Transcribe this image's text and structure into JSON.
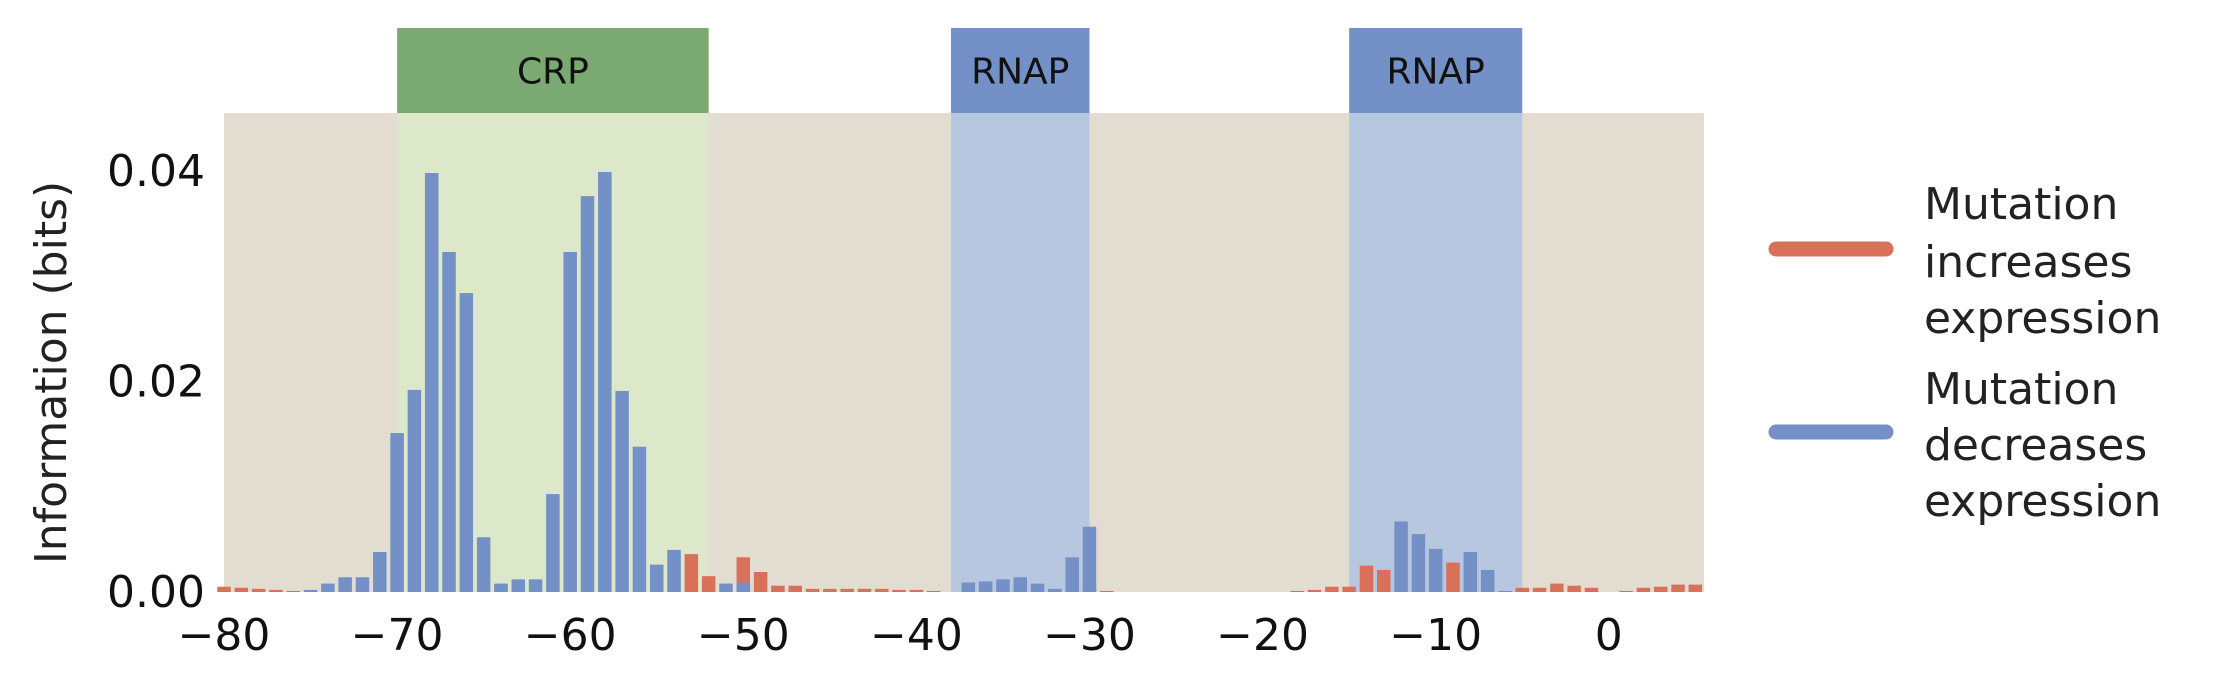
{
  "chart_data": {
    "type": "bar",
    "title": "",
    "xlabel": "",
    "ylabel": "Information (bits)",
    "xlim": [
      -80,
      5.5
    ],
    "ylim": [
      0,
      0.0455
    ],
    "xticks": [
      -80,
      -70,
      -60,
      -50,
      -40,
      -30,
      -20,
      -10,
      0
    ],
    "xtick_labels": [
      "−80",
      "−70",
      "−60",
      "−50",
      "−40",
      "−30",
      "−20",
      "−10",
      "0"
    ],
    "yticks": [
      0,
      0.02,
      0.04
    ],
    "ytick_labels": [
      "0.00",
      "0.02",
      "0.04"
    ],
    "grid": false,
    "background": "#e3ddd1",
    "legend_position": "right",
    "colors": {
      "increase": "#d9705a",
      "decrease": "#7391c6",
      "crp": "#7aaa72",
      "rnap": "#7391c6"
    },
    "regions": [
      {
        "label": "CRP",
        "start": -70,
        "end": -52,
        "color": "#7aaa72",
        "fill": "#dde8cb"
      },
      {
        "label": "RNAP",
        "start": -38,
        "end": -30,
        "color": "#7391c6",
        "fill": "#b8c7e0"
      },
      {
        "label": "RNAP",
        "start": -15,
        "end": -5,
        "color": "#7391c6",
        "fill": "#b8c7e0"
      }
    ],
    "series": [
      {
        "name": "Mutation increases expression",
        "color": "#d9705a",
        "legend_lines": [
          "Mutation",
          "increases",
          "expression"
        ],
        "x": [
          -80,
          -79,
          -78,
          -77,
          -76,
          -64,
          -63,
          -53,
          -52,
          -50,
          -49,
          -48,
          -47,
          -46,
          -45,
          -44,
          -43,
          -42,
          -41,
          -40,
          -39,
          -30,
          -29,
          -18,
          -17,
          -16,
          -15,
          -14,
          -13,
          -9,
          -5,
          -4,
          -3,
          -2,
          -1,
          1,
          2,
          3,
          4,
          5
        ],
        "values": [
          0.0005,
          0.0004,
          0.0003,
          0.0002,
          0.0001,
          0.0007,
          0.0008,
          0.0036,
          0.0015,
          0.0033,
          0.0019,
          0.0006,
          0.0006,
          0.0003,
          0.0003,
          0.0003,
          0.0003,
          0.0003,
          0.0002,
          0.0002,
          0.0001,
          0.0003,
          0.0001,
          0.0001,
          0.0002,
          0.0005,
          0.0005,
          0.0025,
          0.0021,
          0.0028,
          0.0004,
          0.0004,
          0.0008,
          0.0006,
          0.0004,
          0.0001,
          0.0004,
          0.0005,
          0.0007,
          0.0007
        ]
      },
      {
        "name": "Mutation decreases expression",
        "color": "#7391c6",
        "legend_lines": [
          "Mutation",
          "decreases",
          "expression"
        ],
        "x": [
          -75,
          -74,
          -73,
          -72,
          -71,
          -70,
          -69,
          -68,
          -67,
          -66,
          -65,
          -64,
          -63,
          -62,
          -61,
          -60,
          -59,
          -58,
          -57,
          -56,
          -55,
          -54,
          -51,
          -50,
          -37,
          -36,
          -35,
          -34,
          -33,
          -32,
          -31,
          -30,
          -12,
          -11,
          -10,
          -8,
          -7,
          -6
        ],
        "values": [
          0.0002,
          0.0008,
          0.0014,
          0.0014,
          0.0038,
          0.0151,
          0.0192,
          0.0398,
          0.0323,
          0.0284,
          0.0052,
          0.0008,
          0.0012,
          0.0012,
          0.0093,
          0.0323,
          0.0376,
          0.0399,
          0.0191,
          0.0138,
          0.0026,
          0.004,
          0.0008,
          0.0009,
          0.0009,
          0.001,
          0.0012,
          0.0014,
          0.0008,
          0.0003,
          0.0033,
          0.0062,
          0.0067,
          0.0055,
          0.0041,
          0.0038,
          0.0021,
          0.0001
        ]
      }
    ]
  }
}
